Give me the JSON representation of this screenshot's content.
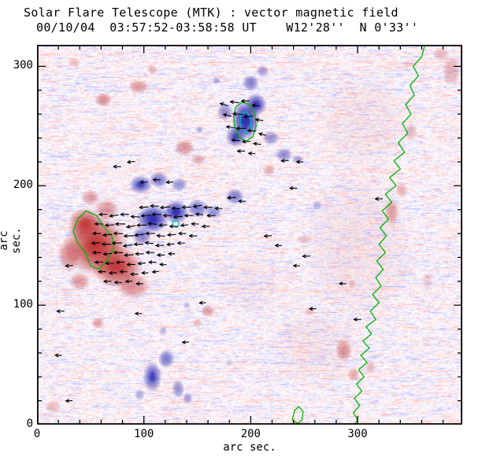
{
  "chart_data": {
    "type": "heatmap",
    "title": "Solar Flare Telescope (MTK) : vector magnetic field",
    "subtitle": "00/10/04  03:57:52-03:58:58 UT    W12'28''  N 0'33''",
    "xlabel": "arc sec.",
    "ylabel": "arc sec.",
    "xlim": [
      0,
      398
    ],
    "ylim": [
      0,
      318
    ],
    "xticks": [
      0,
      100,
      200,
      300
    ],
    "yticks": [
      0,
      100,
      200,
      300
    ],
    "minor_tick_interval": 20,
    "colors": {
      "positive": "#c03535",
      "negative": "#2a2ab0",
      "contour": "#00b400",
      "contour_inner": "#00b8b8",
      "axes": "#000000",
      "arrows": "#000000",
      "background": "#ffffff"
    },
    "pos_blobs": [
      [
        300,
        150,
        55,
        70,
        0.09
      ],
      [
        260,
        65,
        45,
        35,
        0.08
      ],
      [
        305,
        255,
        45,
        45,
        0.08
      ],
      [
        200,
        120,
        40,
        30,
        0.06
      ],
      [
        55,
        150,
        30,
        26,
        0.92
      ],
      [
        75,
        132,
        24,
        18,
        0.85
      ],
      [
        45,
        168,
        16,
        14,
        0.8
      ],
      [
        90,
        116,
        16,
        11,
        0.55
      ],
      [
        30,
        142,
        11,
        14,
        0.55
      ],
      [
        65,
        180,
        12,
        9,
        0.5
      ],
      [
        50,
        190,
        9,
        7,
        0.45
      ],
      [
        40,
        120,
        10,
        8,
        0.5
      ],
      [
        62,
        272,
        8,
        6,
        0.55
      ],
      [
        95,
        283,
        10,
        6,
        0.5
      ],
      [
        35,
        303,
        6,
        4,
        0.3
      ],
      [
        108,
        297,
        5,
        4,
        0.35
      ],
      [
        138,
        232,
        10,
        7,
        0.5
      ],
      [
        151,
        222,
        7,
        5,
        0.4
      ],
      [
        160,
        95,
        7,
        5,
        0.45
      ],
      [
        150,
        85,
        5,
        4,
        0.3
      ],
      [
        57,
        85,
        6,
        5,
        0.45
      ],
      [
        15,
        15,
        8,
        6,
        0.3
      ],
      [
        287,
        62,
        8,
        10,
        0.5
      ],
      [
        296,
        42,
        6,
        6,
        0.4
      ],
      [
        332,
        178,
        7,
        12,
        0.45
      ],
      [
        341,
        196,
        6,
        6,
        0.35
      ],
      [
        350,
        245,
        6,
        8,
        0.3
      ],
      [
        295,
        118,
        4,
        4,
        0.3
      ],
      [
        388,
        296,
        9,
        13,
        0.35
      ],
      [
        378,
        310,
        8,
        6,
        0.3
      ],
      [
        217,
        213,
        6,
        5,
        0.4
      ],
      [
        255,
        95,
        5,
        4,
        0.3
      ],
      [
        250,
        155,
        8,
        4,
        0.25
      ],
      [
        365,
        120,
        5,
        8,
        0.2
      ],
      [
        312,
        48,
        5,
        6,
        0.3
      ]
    ],
    "neg_blobs": [
      [
        108,
        172,
        15,
        12,
        0.9
      ],
      [
        130,
        178,
        12,
        10,
        0.85
      ],
      [
        98,
        158,
        9,
        8,
        0.6
      ],
      [
        150,
        181,
        10,
        8,
        0.6
      ],
      [
        165,
        178,
        8,
        6,
        0.5
      ],
      [
        185,
        191,
        9,
        7,
        0.6
      ],
      [
        97,
        201,
        11,
        8,
        0.7
      ],
      [
        114,
        205,
        9,
        7,
        0.6
      ],
      [
        133,
        201,
        8,
        6,
        0.5
      ],
      [
        195,
        255,
        13,
        17,
        0.95
      ],
      [
        205,
        268,
        10,
        10,
        0.8
      ],
      [
        186,
        241,
        10,
        9,
        0.7
      ],
      [
        200,
        286,
        8,
        7,
        0.6
      ],
      [
        211,
        296,
        6,
        5,
        0.45
      ],
      [
        176,
        262,
        8,
        8,
        0.5
      ],
      [
        219,
        240,
        8,
        6,
        0.5
      ],
      [
        231,
        226,
        8,
        6,
        0.55
      ],
      [
        244,
        222,
        6,
        4,
        0.4
      ],
      [
        168,
        288,
        4,
        3,
        0.4
      ],
      [
        152,
        247,
        4,
        3,
        0.35
      ],
      [
        108,
        40,
        9,
        13,
        0.7
      ],
      [
        121,
        55,
        8,
        8,
        0.6
      ],
      [
        132,
        30,
        6,
        8,
        0.5
      ],
      [
        141,
        22,
        5,
        5,
        0.4
      ],
      [
        96,
        25,
        5,
        5,
        0.35
      ],
      [
        118,
        78,
        4,
        4,
        0.3
      ],
      [
        140,
        100,
        4,
        3,
        0.3
      ],
      [
        262,
        184,
        5,
        4,
        0.3
      ],
      [
        180,
        52,
        4,
        3,
        0.25
      ]
    ],
    "contours": [
      {
        "c": "g",
        "closed": true,
        "pts": [
          [
            38,
            172
          ],
          [
            46,
            179
          ],
          [
            56,
            175
          ],
          [
            62,
            166
          ],
          [
            70,
            158
          ],
          [
            72,
            148
          ],
          [
            66,
            138
          ],
          [
            58,
            130
          ],
          [
            50,
            133
          ],
          [
            46,
            143
          ],
          [
            38,
            152
          ],
          [
            34,
            162
          ]
        ]
      },
      {
        "c": "g",
        "closed": true,
        "pts": [
          [
            186,
            266
          ],
          [
            192,
            270
          ],
          [
            199,
            268
          ],
          [
            204,
            260
          ],
          [
            205,
            250
          ],
          [
            202,
            241
          ],
          [
            195,
            237
          ],
          [
            189,
            241
          ],
          [
            185,
            250
          ],
          [
            184,
            259
          ]
        ]
      },
      {
        "c": "c",
        "closed": true,
        "pts": [
          [
            191,
            260
          ],
          [
            196,
            262
          ],
          [
            200,
            256
          ],
          [
            200,
            248
          ],
          [
            196,
            243
          ],
          [
            192,
            247
          ],
          [
            190,
            253
          ]
        ]
      },
      {
        "c": "c",
        "closed": true,
        "pts": [
          [
            127,
            170
          ],
          [
            131,
            171
          ],
          [
            133,
            168
          ],
          [
            131,
            165
          ],
          [
            127,
            166
          ]
        ]
      },
      {
        "c": "g",
        "closed": true,
        "pts": [
          [
            239,
            4
          ],
          [
            241,
            12
          ],
          [
            245,
            15
          ],
          [
            249,
            11
          ],
          [
            248,
            4
          ],
          [
            244,
            1
          ]
        ]
      },
      {
        "c": "g",
        "closed": false,
        "pts": [
          [
            363,
            318
          ],
          [
            360,
            308
          ],
          [
            352,
            300
          ],
          [
            357,
            292
          ],
          [
            349,
            284
          ],
          [
            353,
            276
          ],
          [
            345,
            268
          ],
          [
            350,
            260
          ],
          [
            342,
            252
          ],
          [
            347,
            244
          ],
          [
            338,
            236
          ],
          [
            344,
            228
          ],
          [
            334,
            221
          ],
          [
            340,
            214
          ],
          [
            330,
            207
          ],
          [
            336,
            200
          ],
          [
            326,
            193
          ],
          [
            332,
            186
          ],
          [
            323,
            179
          ],
          [
            329,
            172
          ],
          [
            321,
            165
          ],
          [
            327,
            158
          ],
          [
            320,
            151
          ],
          [
            326,
            144
          ],
          [
            318,
            137
          ],
          [
            324,
            130
          ],
          [
            317,
            123
          ],
          [
            322,
            116
          ],
          [
            314,
            109
          ],
          [
            320,
            102
          ],
          [
            312,
            95
          ],
          [
            317,
            88
          ],
          [
            308,
            82
          ],
          [
            313,
            76
          ],
          [
            305,
            70
          ],
          [
            311,
            64
          ],
          [
            303,
            58
          ],
          [
            309,
            52
          ],
          [
            301,
            46
          ],
          [
            306,
            40
          ],
          [
            299,
            34
          ],
          [
            304,
            28
          ],
          [
            297,
            22
          ],
          [
            302,
            16
          ],
          [
            296,
            10
          ],
          [
            300,
            4
          ],
          [
            297,
            0
          ]
        ]
      }
    ],
    "arrows": [
      [
        100,
        182,
        185,
        11
      ],
      [
        110,
        183,
        178,
        10
      ],
      [
        120,
        182,
        186,
        12
      ],
      [
        130,
        181,
        175,
        10
      ],
      [
        140,
        182,
        182,
        11
      ],
      [
        150,
        183,
        190,
        10
      ],
      [
        160,
        182,
        180,
        10
      ],
      [
        170,
        181,
        178,
        9
      ],
      [
        62,
        176,
        182,
        10
      ],
      [
        72,
        175,
        188,
        11
      ],
      [
        82,
        176,
        180,
        10
      ],
      [
        92,
        174,
        176,
        11
      ],
      [
        102,
        175,
        184,
        12
      ],
      [
        112,
        176,
        180,
        11
      ],
      [
        122,
        175,
        178,
        10
      ],
      [
        132,
        174,
        186,
        11
      ],
      [
        142,
        175,
        180,
        10
      ],
      [
        152,
        176,
        175,
        9
      ],
      [
        163,
        175,
        182,
        10
      ],
      [
        58,
        168,
        178,
        10
      ],
      [
        68,
        167,
        184,
        11
      ],
      [
        78,
        168,
        180,
        12
      ],
      [
        88,
        166,
        190,
        11
      ],
      [
        98,
        167,
        182,
        12
      ],
      [
        108,
        168,
        176,
        11
      ],
      [
        118,
        167,
        184,
        10
      ],
      [
        128,
        166,
        180,
        10
      ],
      [
        138,
        167,
        186,
        9
      ],
      [
        148,
        168,
        178,
        9
      ],
      [
        158,
        166,
        182,
        9
      ],
      [
        56,
        160,
        180,
        10
      ],
      [
        66,
        159,
        186,
        11
      ],
      [
        76,
        160,
        178,
        11
      ],
      [
        86,
        158,
        182,
        12
      ],
      [
        96,
        159,
        188,
        12
      ],
      [
        106,
        160,
        180,
        11
      ],
      [
        116,
        158,
        176,
        10
      ],
      [
        126,
        159,
        184,
        10
      ],
      [
        136,
        160,
        180,
        9
      ],
      [
        146,
        158,
        178,
        9
      ],
      [
        55,
        152,
        184,
        10
      ],
      [
        65,
        151,
        178,
        11
      ],
      [
        75,
        152,
        182,
        12
      ],
      [
        85,
        150,
        188,
        11
      ],
      [
        95,
        151,
        180,
        11
      ],
      [
        105,
        152,
        174,
        10
      ],
      [
        115,
        150,
        182,
        10
      ],
      [
        125,
        151,
        186,
        9
      ],
      [
        135,
        152,
        180,
        9
      ],
      [
        56,
        144,
        180,
        10
      ],
      [
        66,
        143,
        186,
        10
      ],
      [
        76,
        144,
        178,
        11
      ],
      [
        86,
        142,
        184,
        11
      ],
      [
        96,
        143,
        180,
        10
      ],
      [
        106,
        144,
        176,
        10
      ],
      [
        116,
        142,
        182,
        9
      ],
      [
        126,
        143,
        178,
        8
      ],
      [
        58,
        136,
        182,
        10
      ],
      [
        68,
        135,
        178,
        10
      ],
      [
        78,
        136,
        184,
        10
      ],
      [
        88,
        134,
        180,
        10
      ],
      [
        98,
        135,
        186,
        9
      ],
      [
        108,
        136,
        180,
        9
      ],
      [
        118,
        134,
        176,
        8
      ],
      [
        61,
        128,
        180,
        9
      ],
      [
        71,
        127,
        184,
        9
      ],
      [
        81,
        128,
        178,
        9
      ],
      [
        91,
        126,
        182,
        9
      ],
      [
        101,
        127,
        180,
        8
      ],
      [
        111,
        128,
        186,
        8
      ],
      [
        66,
        120,
        182,
        9
      ],
      [
        76,
        119,
        178,
        9
      ],
      [
        86,
        120,
        184,
        8
      ],
      [
        96,
        118,
        180,
        8
      ],
      [
        182,
        190,
        183,
        10
      ],
      [
        192,
        187,
        179,
        9
      ],
      [
        175,
        268,
        162,
        10
      ],
      [
        185,
        270,
        172,
        11
      ],
      [
        195,
        271,
        182,
        10
      ],
      [
        205,
        267,
        174,
        10
      ],
      [
        178,
        259,
        168,
        10
      ],
      [
        188,
        260,
        176,
        12
      ],
      [
        198,
        258,
        184,
        11
      ],
      [
        208,
        255,
        170,
        9
      ],
      [
        181,
        249,
        172,
        10
      ],
      [
        191,
        248,
        180,
        12
      ],
      [
        201,
        246,
        176,
        10
      ],
      [
        211,
        243,
        166,
        9
      ],
      [
        186,
        238,
        176,
        10
      ],
      [
        196,
        237,
        184,
        10
      ],
      [
        206,
        235,
        172,
        9
      ],
      [
        191,
        229,
        180,
        9
      ],
      [
        201,
        227,
        176,
        8
      ],
      [
        100,
        203,
        182,
        9
      ],
      [
        112,
        205,
        178,
        9
      ],
      [
        124,
        203,
        184,
        8
      ],
      [
        75,
        216,
        181,
        9
      ],
      [
        88,
        220,
        186,
        9
      ],
      [
        22,
        95,
        182,
        9
      ],
      [
        30,
        133,
        184,
        9
      ],
      [
        20,
        58,
        178,
        8
      ],
      [
        240,
        198,
        180,
        9
      ],
      [
        252,
        141,
        181,
        9
      ],
      [
        243,
        133,
        178,
        8
      ],
      [
        216,
        158,
        184,
        9
      ],
      [
        226,
        150,
        179,
        8
      ],
      [
        300,
        88,
        181,
        9
      ],
      [
        286,
        118,
        177,
        8
      ],
      [
        320,
        189,
        181,
        9
      ],
      [
        155,
        102,
        183,
        8
      ],
      [
        95,
        93,
        180,
        8
      ],
      [
        139,
        69,
        184,
        8
      ],
      [
        258,
        97,
        180,
        8
      ],
      [
        30,
        20,
        181,
        8
      ],
      [
        232,
        221,
        183,
        9
      ],
      [
        246,
        220,
        178,
        8
      ]
    ]
  }
}
